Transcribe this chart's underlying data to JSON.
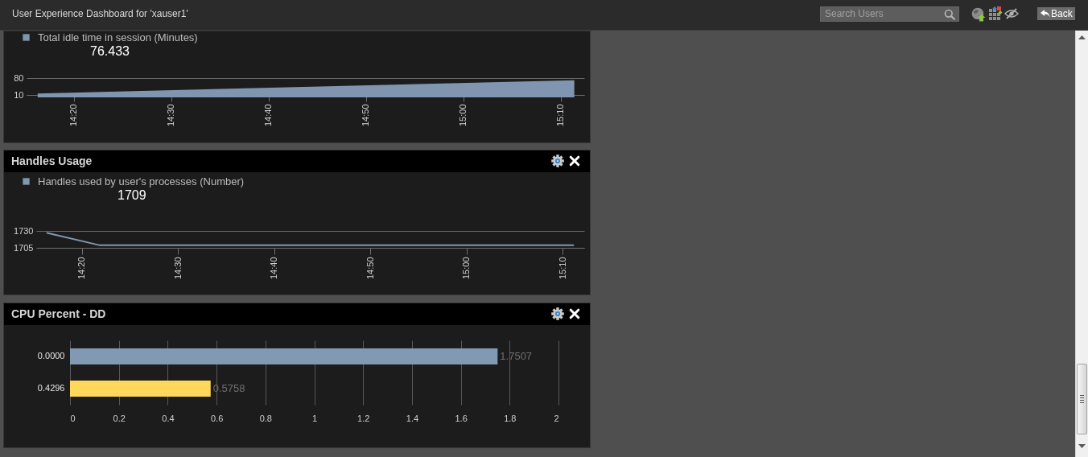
{
  "chart_data": [
    {
      "type": "other",
      "title": "User Experience Dashboard for 'xauser1'",
      "annotations": [
        "Search Users",
        "Back"
      ]
    },
    {
      "type": "area",
      "x": [
        14.271,
        15.19
      ],
      "series": [
        {
          "name": "Total idle time in session (Minutes)",
          "color": "#8096b0",
          "values": [
            16,
            71
          ]
        }
      ],
      "xlim": [
        14.252,
        15.207
      ],
      "ylim": [
        10,
        80
      ],
      "xticks": [
        {
          "value": 14.3333,
          "label": "14:20"
        },
        {
          "value": 14.5,
          "label": "14:30"
        },
        {
          "value": 14.6667,
          "label": "14:40"
        },
        {
          "value": 14.8333,
          "label": "14:50"
        },
        {
          "value": 15,
          "label": "15:00"
        },
        {
          "value": 15.1667,
          "label": "15:10"
        }
      ],
      "yticks": [
        10,
        80
      ],
      "grid": "y",
      "legend": "top left",
      "annotations": [
        "76.433"
      ]
    },
    {
      "type": "line",
      "title": "Handles Usage",
      "x": [
        14.273,
        14.363,
        15.185
      ],
      "series": [
        {
          "name": "Handles used by user's processes (Number)",
          "color": "#8297b0",
          "values": [
            1727,
            1709,
            1709
          ]
        }
      ],
      "xlim": [
        14.254,
        15.204
      ],
      "ylim": [
        1705,
        1730
      ],
      "xticks": [
        {
          "value": 14.3333,
          "label": "14:20"
        },
        {
          "value": 14.5,
          "label": "14:30"
        },
        {
          "value": 14.6667,
          "label": "14:40"
        },
        {
          "value": 14.8333,
          "label": "14:50"
        },
        {
          "value": 15,
          "label": "15:00"
        },
        {
          "value": 15.1667,
          "label": "15:10"
        }
      ],
      "yticks": [
        1705,
        1730
      ],
      "grid": "y",
      "legend": "top left",
      "annotations": [
        "1709"
      ]
    },
    {
      "type": "bar",
      "title": "CPU Percent - DD",
      "orientation": "horizontal",
      "categories": [
        "0.0000",
        "0.4296"
      ],
      "values": [
        1.7507,
        0.5758
      ],
      "colors": [
        "#8199b2",
        "#ffd75a"
      ],
      "xlim": [
        0,
        2
      ],
      "xticks": [
        0,
        0.2,
        0.4,
        0.6,
        0.8,
        1,
        1.2,
        1.4,
        1.6,
        1.8,
        2
      ],
      "grid": "x",
      "data_labels": true
    }
  ]
}
